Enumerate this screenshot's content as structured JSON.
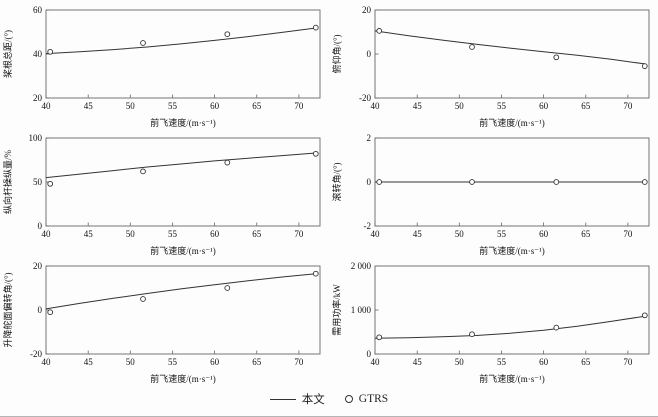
{
  "colors": {
    "line": "#333333",
    "marker": "#333333",
    "axis": "#666666",
    "text": "#111111"
  },
  "legend": {
    "line_label": "本文",
    "marker_label": "GTRS"
  },
  "chart_data": [
    {
      "type": "line",
      "xlabel": "前飞速度/(m·s⁻¹)",
      "ylabel": "桨根总距/(°)",
      "xlim": [
        40,
        72.5
      ],
      "ylim": [
        20,
        60
      ],
      "xticks": [
        40,
        45,
        50,
        55,
        60,
        65,
        70
      ],
      "yticks": [
        20,
        40,
        60
      ],
      "series": [
        {
          "name": "本文",
          "style": "line",
          "x": [
            40,
            44,
            48,
            52,
            56,
            60,
            64,
            68,
            72
          ],
          "y": [
            40.2,
            41.0,
            42.0,
            43.2,
            44.6,
            46.2,
            47.9,
            49.8,
            51.8
          ]
        },
        {
          "name": "GTRS",
          "style": "scatter",
          "x": [
            40.5,
            51.5,
            61.5,
            72
          ],
          "y": [
            41,
            45,
            49,
            52
          ]
        }
      ]
    },
    {
      "type": "line",
      "xlabel": "前飞速度/(m·s⁻¹)",
      "ylabel": "俯仰角/(°)",
      "xlim": [
        40,
        72.5
      ],
      "ylim": [
        -20,
        20
      ],
      "xticks": [
        40,
        45,
        50,
        55,
        60,
        65,
        70
      ],
      "yticks": [
        -20,
        0,
        20
      ],
      "series": [
        {
          "name": "本文",
          "style": "line",
          "x": [
            40,
            44,
            48,
            52,
            56,
            60,
            64,
            68,
            72
          ],
          "y": [
            10.5,
            8.3,
            6.3,
            4.4,
            2.7,
            1.0,
            -0.6,
            -2.4,
            -4.5
          ]
        },
        {
          "name": "GTRS",
          "style": "scatter",
          "x": [
            40.5,
            51.5,
            61.5,
            72
          ],
          "y": [
            10.5,
            3.2,
            -1.5,
            -5.5
          ]
        }
      ]
    },
    {
      "type": "line",
      "xlabel": "前飞速度/(m·s⁻¹)",
      "ylabel": "纵向杆操纵量/%",
      "xlim": [
        40,
        72.5
      ],
      "ylim": [
        0,
        100
      ],
      "xticks": [
        40,
        45,
        50,
        55,
        60,
        65,
        70
      ],
      "yticks": [
        0,
        50,
        100
      ],
      "series": [
        {
          "name": "本文",
          "style": "line",
          "x": [
            40,
            44,
            48,
            52,
            56,
            60,
            64,
            68,
            72
          ],
          "y": [
            55,
            59,
            63,
            67,
            70.5,
            74,
            77,
            80,
            83
          ]
        },
        {
          "name": "GTRS",
          "style": "scatter",
          "x": [
            40.5,
            51.5,
            61.5,
            72
          ],
          "y": [
            48,
            62,
            72,
            82
          ]
        }
      ]
    },
    {
      "type": "line",
      "xlabel": "前飞速度/(m·s⁻¹)",
      "ylabel": "滚转角/(°)",
      "xlim": [
        40,
        72.5
      ],
      "ylim": [
        -2,
        2
      ],
      "xticks": [
        40,
        45,
        50,
        55,
        60,
        65,
        70
      ],
      "yticks": [
        -2,
        0,
        2
      ],
      "series": [
        {
          "name": "本文",
          "style": "line",
          "x": [
            40,
            44,
            48,
            52,
            56,
            60,
            64,
            68,
            72
          ],
          "y": [
            0,
            0,
            0,
            0,
            0,
            0,
            0,
            0,
            0
          ]
        },
        {
          "name": "GTRS",
          "style": "scatter",
          "x": [
            40.5,
            51.5,
            61.5,
            72
          ],
          "y": [
            0,
            0,
            0,
            0
          ]
        }
      ]
    },
    {
      "type": "line",
      "xlabel": "前飞速度/(m·s⁻¹)",
      "ylabel": "升降舵面偏转角/(°)",
      "xlim": [
        40,
        72.5
      ],
      "ylim": [
        -20,
        20
      ],
      "xticks": [
        40,
        45,
        50,
        55,
        60,
        65,
        70
      ],
      "yticks": [
        -20,
        0,
        20
      ],
      "series": [
        {
          "name": "本文",
          "style": "line",
          "x": [
            40,
            44,
            48,
            52,
            56,
            60,
            64,
            68,
            72
          ],
          "y": [
            0.5,
            3.0,
            5.3,
            7.5,
            9.6,
            11.5,
            13.3,
            15.0,
            16.5
          ]
        },
        {
          "name": "GTRS",
          "style": "scatter",
          "x": [
            40.5,
            51.5,
            61.5,
            72
          ],
          "y": [
            -1,
            5,
            10,
            16.5
          ]
        }
      ]
    },
    {
      "type": "line",
      "xlabel": "前飞速度/(m·s⁻¹)",
      "ylabel": "需用功率/kW",
      "xlim": [
        40,
        72.5
      ],
      "ylim": [
        0,
        2000
      ],
      "xticks": [
        40,
        45,
        50,
        55,
        60,
        65,
        70
      ],
      "yticks": [
        0,
        1000,
        2000
      ],
      "ytick_labels": [
        "0",
        "1 000",
        "2 000"
      ],
      "series": [
        {
          "name": "本文",
          "style": "line",
          "x": [
            40,
            44,
            48,
            52,
            56,
            60,
            64,
            68,
            72
          ],
          "y": [
            360,
            370,
            390,
            420,
            470,
            540,
            630,
            740,
            860
          ]
        },
        {
          "name": "GTRS",
          "style": "scatter",
          "x": [
            40.5,
            51.5,
            61.5,
            72
          ],
          "y": [
            380,
            450,
            600,
            880
          ]
        }
      ]
    }
  ]
}
